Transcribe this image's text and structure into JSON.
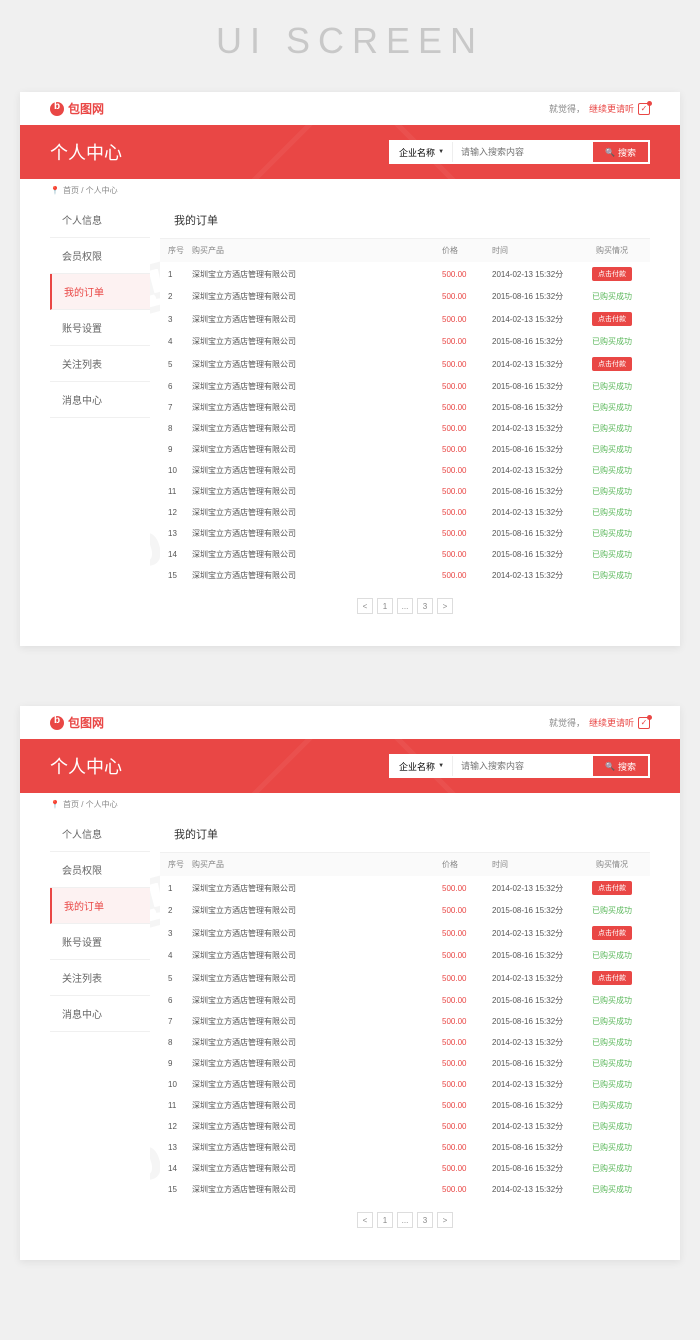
{
  "page_heading": "UI SCREEN",
  "logo_text": "包图网",
  "top_right": {
    "greeting": "就觉得，",
    "link": "继续更请听",
    "check": "✓"
  },
  "hero_title": "个人中心",
  "search": {
    "dropdown": "企业名称",
    "placeholder": "请输入搜索内容",
    "button": "搜索"
  },
  "breadcrumb": "首页 / 个人中心",
  "sidebar": {
    "items": [
      {
        "label": "个人信息",
        "active": false
      },
      {
        "label": "会员权限",
        "active": false
      },
      {
        "label": "我的订单",
        "active": true
      },
      {
        "label": "账号设置",
        "active": false
      },
      {
        "label": "关注列表",
        "active": false
      },
      {
        "label": "消息中心",
        "active": false
      }
    ]
  },
  "main_title": "我的订单",
  "table": {
    "headers": {
      "no": "序号",
      "product": "购买产品",
      "price": "价格",
      "time": "时间",
      "status": "购买情况"
    },
    "rows": [
      {
        "no": "1",
        "product": "深圳宝立方酒店管理有限公司",
        "price": "500.00",
        "time": "2014-02-13 15:32分",
        "status": "pay",
        "status_text": "点击付款"
      },
      {
        "no": "2",
        "product": "深圳宝立方酒店管理有限公司",
        "price": "500.00",
        "time": "2015-08-16 15:32分",
        "status": "success",
        "status_text": "已购买成功"
      },
      {
        "no": "3",
        "product": "深圳宝立方酒店管理有限公司",
        "price": "500.00",
        "time": "2014-02-13 15:32分",
        "status": "pay",
        "status_text": "点击付款"
      },
      {
        "no": "4",
        "product": "深圳宝立方酒店管理有限公司",
        "price": "500.00",
        "time": "2015-08-16 15:32分",
        "status": "success",
        "status_text": "已购买成功"
      },
      {
        "no": "5",
        "product": "深圳宝立方酒店管理有限公司",
        "price": "500.00",
        "time": "2014-02-13 15:32分",
        "status": "pay",
        "status_text": "点击付款"
      },
      {
        "no": "6",
        "product": "深圳宝立方酒店管理有限公司",
        "price": "500.00",
        "time": "2015-08-16 15:32分",
        "status": "success",
        "status_text": "已购买成功"
      },
      {
        "no": "7",
        "product": "深圳宝立方酒店管理有限公司",
        "price": "500.00",
        "time": "2015-08-16 15:32分",
        "status": "success",
        "status_text": "已购买成功"
      },
      {
        "no": "8",
        "product": "深圳宝立方酒店管理有限公司",
        "price": "500.00",
        "time": "2014-02-13 15:32分",
        "status": "success",
        "status_text": "已购买成功"
      },
      {
        "no": "9",
        "product": "深圳宝立方酒店管理有限公司",
        "price": "500.00",
        "time": "2015-08-16 15:32分",
        "status": "success",
        "status_text": "已购买成功"
      },
      {
        "no": "10",
        "product": "深圳宝立方酒店管理有限公司",
        "price": "500.00",
        "time": "2014-02-13 15:32分",
        "status": "success",
        "status_text": "已购买成功"
      },
      {
        "no": "11",
        "product": "深圳宝立方酒店管理有限公司",
        "price": "500.00",
        "time": "2015-08-16 15:32分",
        "status": "success",
        "status_text": "已购买成功"
      },
      {
        "no": "12",
        "product": "深圳宝立方酒店管理有限公司",
        "price": "500.00",
        "time": "2014-02-13 15:32分",
        "status": "success",
        "status_text": "已购买成功"
      },
      {
        "no": "13",
        "product": "深圳宝立方酒店管理有限公司",
        "price": "500.00",
        "time": "2015-08-16 15:32分",
        "status": "success",
        "status_text": "已购买成功"
      },
      {
        "no": "14",
        "product": "深圳宝立方酒店管理有限公司",
        "price": "500.00",
        "time": "2015-08-16 15:32分",
        "status": "success",
        "status_text": "已购买成功"
      },
      {
        "no": "15",
        "product": "深圳宝立方酒店管理有限公司",
        "price": "500.00",
        "time": "2014-02-13 15:32分",
        "status": "success",
        "status_text": "已购买成功"
      }
    ]
  },
  "pagination": [
    "<",
    "1",
    "...",
    "3",
    ">"
  ],
  "colors": {
    "primary": "#e94745",
    "success": "#5cb85c",
    "bg": "#f0f0f0",
    "muted": "#888888"
  }
}
